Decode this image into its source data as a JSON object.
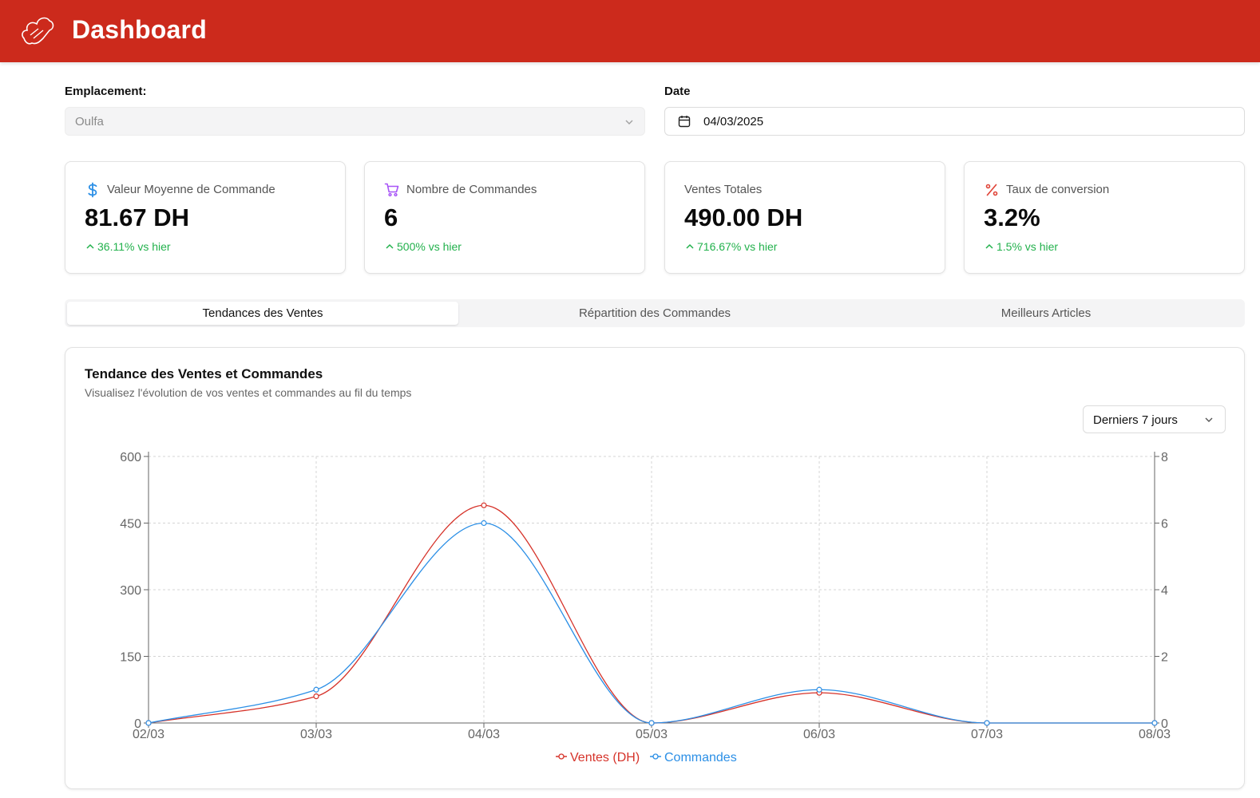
{
  "header": {
    "title": "Dashboard",
    "logo_icon": "chef-hat-logo-icon",
    "background": "#cc2a1c"
  },
  "filters": {
    "location_label": "Emplacement:",
    "location_value": "Oulfa",
    "date_label": "Date",
    "date_value": "04/03/2025"
  },
  "kpis": [
    {
      "icon": "dollar-icon",
      "icon_color": "#2b8fe6",
      "label": "Valeur Moyenne de Commande",
      "value": "81.67 DH",
      "delta": "36.11% vs hier"
    },
    {
      "icon": "cart-icon",
      "icon_color": "#a855f7",
      "label": "Nombre de Commandes",
      "value": "6",
      "delta": "500% vs hier"
    },
    {
      "icon": "",
      "icon_color": "",
      "label": "Ventes Totales",
      "value": "490.00 DH",
      "delta": "716.67% vs hier"
    },
    {
      "icon": "percent-icon",
      "icon_color": "#e0463a",
      "label": "Taux de conversion",
      "value": "3.2%",
      "delta": "1.5% vs hier"
    }
  ],
  "tabs": [
    {
      "label": "Tendances des Ventes",
      "active": true
    },
    {
      "label": "Répartition des Commandes",
      "active": false
    },
    {
      "label": "Meilleurs Articles",
      "active": false
    }
  ],
  "panel": {
    "title": "Tendance des Ventes et Commandes",
    "subtitle": "Visualisez l'évolution de vos ventes et commandes au fil du temps",
    "range_value": "Derniers 7 jours"
  },
  "chart_data": {
    "type": "line",
    "x": [
      "02/03",
      "03/03",
      "04/03",
      "05/03",
      "06/03",
      "07/03",
      "08/03"
    ],
    "series": [
      {
        "name": "Ventes (DH)",
        "axis": "left",
        "color": "#d6332a",
        "values": [
          0,
          60,
          490,
          0,
          68,
          0,
          0
        ]
      },
      {
        "name": "Commandes",
        "axis": "right",
        "color": "#2b8fe6",
        "values": [
          0,
          1,
          6,
          0,
          1,
          0,
          0
        ]
      }
    ],
    "y_left": {
      "ticks": [
        0,
        150,
        300,
        450,
        600
      ],
      "ylim": [
        0,
        600
      ]
    },
    "y_right": {
      "ticks": [
        0,
        2,
        4,
        6,
        8
      ],
      "ylim": [
        0,
        8
      ]
    },
    "grid": true,
    "legend": "bottom-center"
  }
}
